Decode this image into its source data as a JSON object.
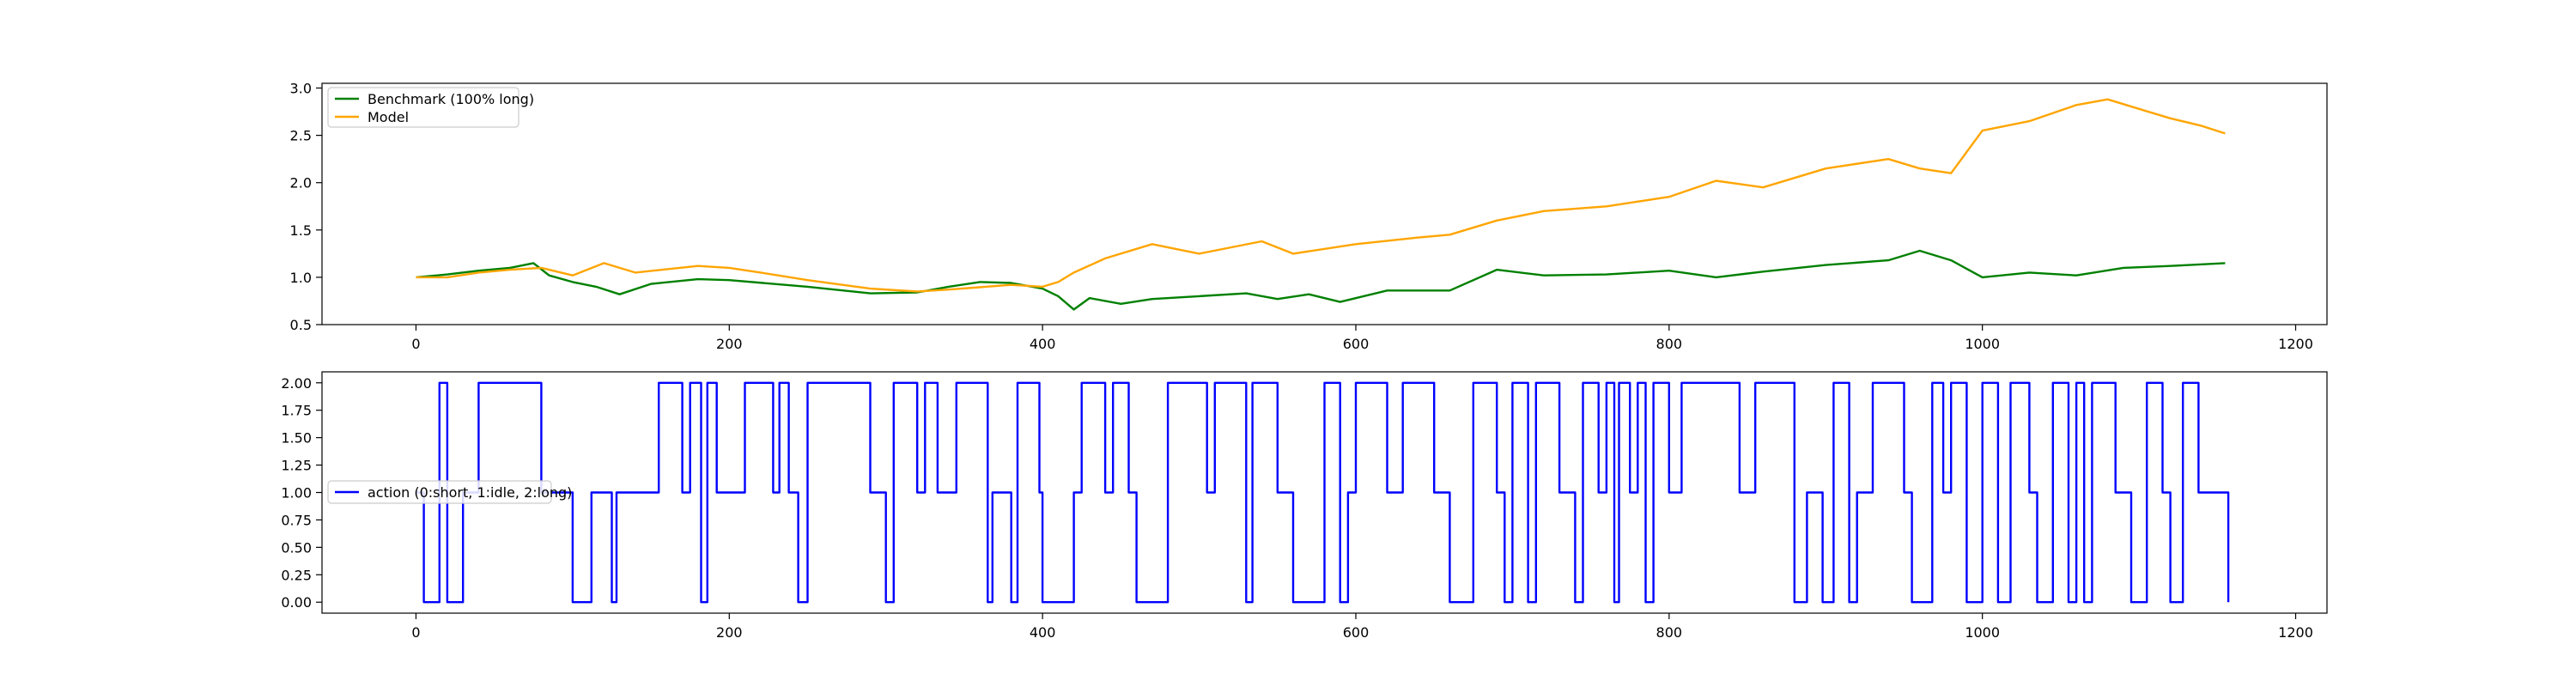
{
  "colors": {
    "benchmark": "#008000",
    "model": "#ffa500",
    "action": "#0000ff",
    "axes": "#000000",
    "legend_border": "#cccccc"
  },
  "chart_data": [
    {
      "type": "line",
      "title": "",
      "xlabel": "",
      "ylabel": "",
      "xlim": [
        -60,
        1220
      ],
      "ylim": [
        0.5,
        3.05
      ],
      "xticks": [
        0,
        200,
        400,
        600,
        800,
        1000,
        1200
      ],
      "yticks": [
        0.5,
        1.0,
        1.5,
        2.0,
        2.5,
        3.0
      ],
      "xtick_labels": [
        "0",
        "200",
        "400",
        "600",
        "800",
        "1000",
        "1200"
      ],
      "ytick_labels": [
        "0.5",
        "1.0",
        "1.5",
        "2.0",
        "2.5",
        "3.0"
      ],
      "grid": false,
      "legend_position": "upper-left",
      "series": [
        {
          "name": "Benchmark (100% long)",
          "color_key": "benchmark",
          "points": [
            [
              0,
              1.0
            ],
            [
              20,
              1.03
            ],
            [
              40,
              1.07
            ],
            [
              60,
              1.1
            ],
            [
              75,
              1.15
            ],
            [
              85,
              1.02
            ],
            [
              100,
              0.95
            ],
            [
              115,
              0.9
            ],
            [
              130,
              0.82
            ],
            [
              150,
              0.93
            ],
            [
              180,
              0.98
            ],
            [
              200,
              0.97
            ],
            [
              250,
              0.9
            ],
            [
              290,
              0.83
            ],
            [
              320,
              0.84
            ],
            [
              340,
              0.9
            ],
            [
              360,
              0.95
            ],
            [
              380,
              0.94
            ],
            [
              400,
              0.88
            ],
            [
              410,
              0.8
            ],
            [
              420,
              0.66
            ],
            [
              430,
              0.78
            ],
            [
              450,
              0.72
            ],
            [
              470,
              0.77
            ],
            [
              500,
              0.8
            ],
            [
              530,
              0.83
            ],
            [
              550,
              0.77
            ],
            [
              570,
              0.82
            ],
            [
              590,
              0.74
            ],
            [
              620,
              0.86
            ],
            [
              660,
              0.86
            ],
            [
              690,
              1.08
            ],
            [
              720,
              1.02
            ],
            [
              760,
              1.03
            ],
            [
              800,
              1.07
            ],
            [
              830,
              1.0
            ],
            [
              860,
              1.06
            ],
            [
              900,
              1.13
            ],
            [
              940,
              1.18
            ],
            [
              960,
              1.28
            ],
            [
              980,
              1.18
            ],
            [
              1000,
              1.0
            ],
            [
              1030,
              1.05
            ],
            [
              1060,
              1.02
            ],
            [
              1090,
              1.1
            ],
            [
              1120,
              1.12
            ],
            [
              1155,
              1.15
            ]
          ]
        },
        {
          "name": "Model",
          "color_key": "model",
          "points": [
            [
              0,
              1.0
            ],
            [
              20,
              1.0
            ],
            [
              40,
              1.05
            ],
            [
              60,
              1.08
            ],
            [
              80,
              1.1
            ],
            [
              100,
              1.02
            ],
            [
              120,
              1.15
            ],
            [
              140,
              1.05
            ],
            [
              180,
              1.12
            ],
            [
              200,
              1.1
            ],
            [
              220,
              1.05
            ],
            [
              250,
              0.97
            ],
            [
              290,
              0.88
            ],
            [
              320,
              0.85
            ],
            [
              340,
              0.87
            ],
            [
              380,
              0.92
            ],
            [
              400,
              0.9
            ],
            [
              410,
              0.95
            ],
            [
              420,
              1.05
            ],
            [
              440,
              1.2
            ],
            [
              470,
              1.35
            ],
            [
              500,
              1.25
            ],
            [
              540,
              1.38
            ],
            [
              560,
              1.25
            ],
            [
              600,
              1.35
            ],
            [
              640,
              1.42
            ],
            [
              660,
              1.45
            ],
            [
              690,
              1.6
            ],
            [
              720,
              1.7
            ],
            [
              760,
              1.75
            ],
            [
              800,
              1.85
            ],
            [
              830,
              2.02
            ],
            [
              860,
              1.95
            ],
            [
              900,
              2.15
            ],
            [
              940,
              2.25
            ],
            [
              960,
              2.15
            ],
            [
              980,
              2.1
            ],
            [
              1000,
              2.55
            ],
            [
              1030,
              2.65
            ],
            [
              1060,
              2.82
            ],
            [
              1080,
              2.88
            ],
            [
              1100,
              2.78
            ],
            [
              1120,
              2.68
            ],
            [
              1140,
              2.6
            ],
            [
              1155,
              2.52
            ]
          ]
        }
      ]
    },
    {
      "type": "line",
      "title": "",
      "xlabel": "",
      "ylabel": "",
      "xlim": [
        -60,
        1220
      ],
      "ylim": [
        -0.1,
        2.1
      ],
      "xticks": [
        0,
        200,
        400,
        600,
        800,
        1000,
        1200
      ],
      "yticks": [
        0.0,
        0.25,
        0.5,
        0.75,
        1.0,
        1.25,
        1.5,
        1.75,
        2.0
      ],
      "xtick_labels": [
        "0",
        "200",
        "400",
        "600",
        "800",
        "1000",
        "1200"
      ],
      "ytick_labels": [
        "0.00",
        "0.25",
        "0.50",
        "0.75",
        "1.00",
        "1.25",
        "1.50",
        "1.75",
        "2.00"
      ],
      "grid": false,
      "legend_position": "center-left",
      "series": [
        {
          "name": "action (0:short, 1:idle, 2:long)",
          "color_key": "action",
          "step": true,
          "points": [
            [
              0,
              1
            ],
            [
              5,
              0
            ],
            [
              15,
              2
            ],
            [
              20,
              0
            ],
            [
              30,
              1
            ],
            [
              40,
              2
            ],
            [
              80,
              1
            ],
            [
              100,
              0
            ],
            [
              112,
              1
            ],
            [
              125,
              0
            ],
            [
              128,
              1
            ],
            [
              155,
              2
            ],
            [
              170,
              1
            ],
            [
              175,
              2
            ],
            [
              182,
              0
            ],
            [
              186,
              2
            ],
            [
              192,
              1
            ],
            [
              210,
              2
            ],
            [
              228,
              1
            ],
            [
              232,
              2
            ],
            [
              238,
              1
            ],
            [
              244,
              0
            ],
            [
              250,
              2
            ],
            [
              290,
              1
            ],
            [
              300,
              0
            ],
            [
              305,
              2
            ],
            [
              320,
              1
            ],
            [
              325,
              2
            ],
            [
              333,
              1
            ],
            [
              345,
              2
            ],
            [
              365,
              0
            ],
            [
              368,
              1
            ],
            [
              380,
              0
            ],
            [
              384,
              2
            ],
            [
              398,
              1
            ],
            [
              400,
              0
            ],
            [
              420,
              1
            ],
            [
              425,
              2
            ],
            [
              440,
              1
            ],
            [
              445,
              2
            ],
            [
              455,
              1
            ],
            [
              460,
              0
            ],
            [
              480,
              2
            ],
            [
              505,
              1
            ],
            [
              510,
              2
            ],
            [
              530,
              0
            ],
            [
              534,
              2
            ],
            [
              550,
              1
            ],
            [
              560,
              0
            ],
            [
              580,
              2
            ],
            [
              590,
              0
            ],
            [
              595,
              1
            ],
            [
              600,
              2
            ],
            [
              620,
              1
            ],
            [
              630,
              2
            ],
            [
              650,
              1
            ],
            [
              660,
              0
            ],
            [
              675,
              2
            ],
            [
              690,
              1
            ],
            [
              695,
              0
            ],
            [
              700,
              2
            ],
            [
              710,
              0
            ],
            [
              715,
              2
            ],
            [
              730,
              1
            ],
            [
              740,
              0
            ],
            [
              745,
              2
            ],
            [
              755,
              1
            ],
            [
              760,
              2
            ],
            [
              765,
              0
            ],
            [
              768,
              2
            ],
            [
              775,
              1
            ],
            [
              780,
              2
            ],
            [
              785,
              0
            ],
            [
              790,
              2
            ],
            [
              800,
              1
            ],
            [
              808,
              2
            ],
            [
              845,
              1
            ],
            [
              855,
              2
            ],
            [
              880,
              0
            ],
            [
              888,
              1
            ],
            [
              898,
              0
            ],
            [
              905,
              2
            ],
            [
              915,
              0
            ],
            [
              920,
              1
            ],
            [
              930,
              2
            ],
            [
              950,
              1
            ],
            [
              955,
              0
            ],
            [
              968,
              2
            ],
            [
              975,
              1
            ],
            [
              980,
              2
            ],
            [
              990,
              0
            ],
            [
              1000,
              2
            ],
            [
              1010,
              0
            ],
            [
              1018,
              2
            ],
            [
              1030,
              1
            ],
            [
              1035,
              0
            ],
            [
              1045,
              2
            ],
            [
              1055,
              0
            ],
            [
              1060,
              2
            ],
            [
              1065,
              0
            ],
            [
              1070,
              2
            ],
            [
              1085,
              1
            ],
            [
              1095,
              0
            ],
            [
              1105,
              2
            ],
            [
              1115,
              1
            ],
            [
              1120,
              0
            ],
            [
              1128,
              2
            ],
            [
              1138,
              1
            ],
            [
              1145,
              1
            ],
            [
              1157,
              0
            ]
          ]
        }
      ]
    }
  ]
}
